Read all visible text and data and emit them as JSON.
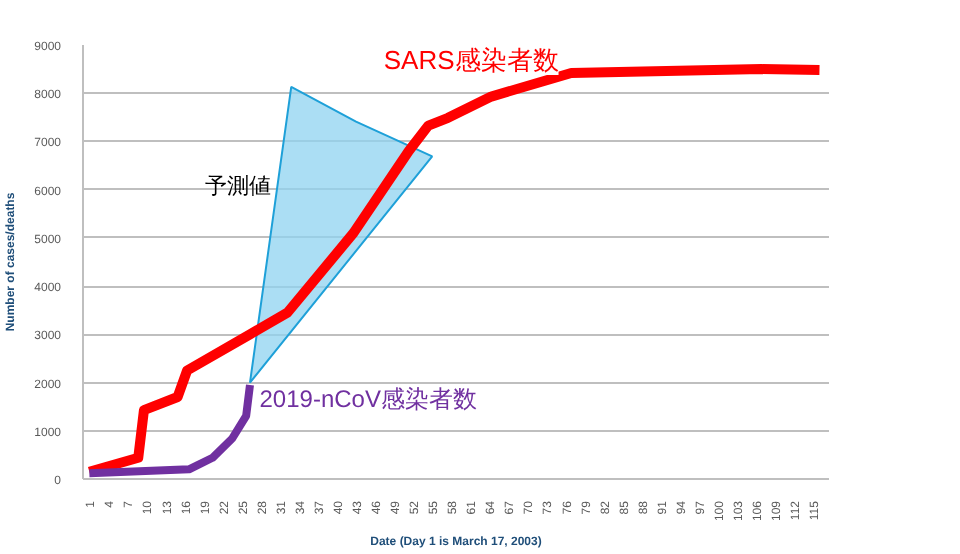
{
  "chart_data": {
    "type": "line",
    "xlabel": "Date (Day 1 is March 17, 2003)",
    "ylabel": "Number of cases/deaths",
    "xlim": [
      0,
      117.5
    ],
    "ylim": [
      0,
      9000
    ],
    "xticks": [
      1,
      4,
      7,
      10,
      13,
      16,
      19,
      22,
      25,
      28,
      31,
      34,
      37,
      40,
      43,
      46,
      49,
      52,
      55,
      58,
      61,
      64,
      67,
      70,
      73,
      76,
      79,
      82,
      85,
      88,
      91,
      94,
      97,
      100,
      103,
      106,
      109,
      112,
      115
    ],
    "yticks": [
      0,
      1000,
      2000,
      3000,
      4000,
      5000,
      6000,
      7000,
      8000,
      9000
    ],
    "grid": "y",
    "legend": false,
    "marker": "none",
    "line_style": "solid",
    "series": [
      {
        "name": "予測値",
        "type": "area",
        "color": "#8fd3f0",
        "x": [
          26.3,
          32.8,
          43,
          55
        ],
        "values": [
          2000,
          8130,
          7410,
          6690
        ]
      },
      {
        "name": "SARS感染者数",
        "color": "#ff0000",
        "x": [
          1,
          8.7,
          9.6,
          14.9,
          16.4,
          26.3,
          32.2,
          42.6,
          51.3,
          54.4,
          57.5,
          64.3,
          76.9,
          106.9,
          116
        ],
        "values": [
          150,
          440,
          1430,
          1700,
          2250,
          3000,
          3450,
          5100,
          6800,
          7330,
          7490,
          7930,
          8420,
          8500,
          8480
        ]
      },
      {
        "name": "2019-nCoV感染者数",
        "color": "#7030a0",
        "x": [
          1,
          16.7,
          20.4,
          23.5,
          25.7,
          26.3
        ],
        "values": [
          120,
          200,
          440,
          840,
          1310,
          1950
        ]
      }
    ]
  }
}
